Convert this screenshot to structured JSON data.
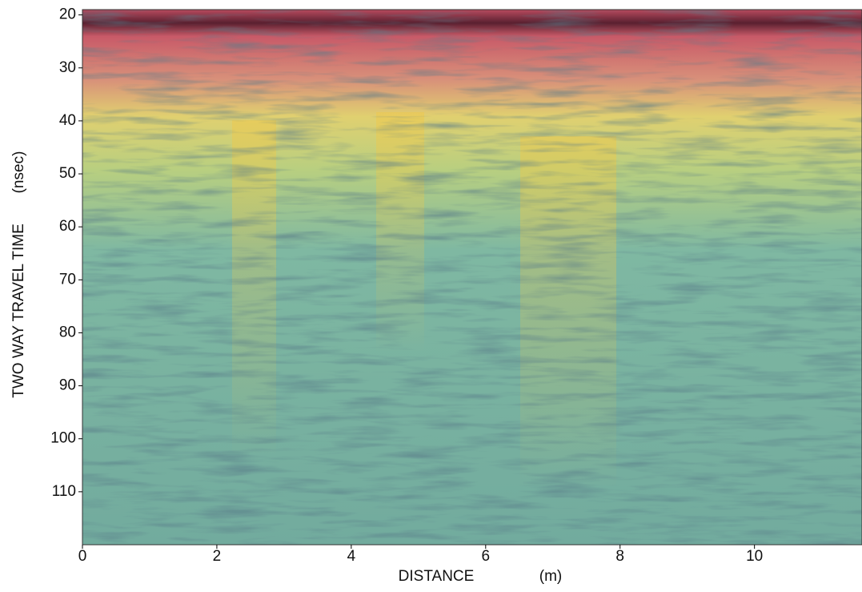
{
  "chart_data": {
    "type": "radargram",
    "xlabel": "DISTANCE",
    "xunit": "(m)",
    "ylabel": "TWO WAY TRAVEL TIME",
    "yunit": "(nsec)",
    "xlim": [
      0,
      11.6
    ],
    "xticks": [
      0,
      2,
      4,
      6,
      8,
      10
    ],
    "ylim": [
      19,
      120
    ],
    "yticks": [
      20,
      30,
      40,
      50,
      60,
      70,
      80,
      90,
      100,
      110
    ],
    "y_inverted": true
  }
}
